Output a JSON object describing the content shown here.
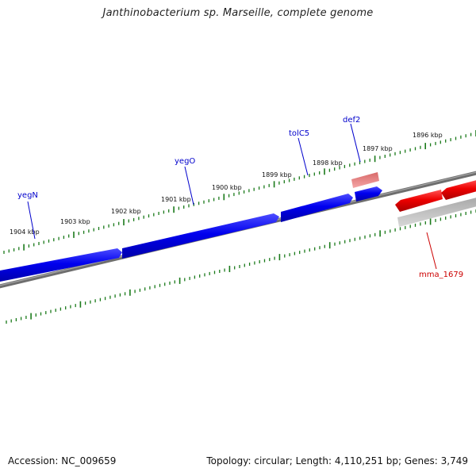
{
  "title": "Janthinobacterium sp. Marseille, complete genome",
  "footer": {
    "accession": "Accession: NC_009659",
    "summary": "Topology: circular; Length: 4,110,251 bp; Genes: 3,749"
  },
  "colors": {
    "forward_gene": "#0000ee",
    "reverse_gene": "#ee0000",
    "backbone": "#777777",
    "ticks": "#1a7a1a",
    "forward_label": "#0000cc",
    "reverse_label": "#cc0000"
  },
  "ruler_labels": [
    "1896 kbp",
    "1897 kbp",
    "1898 kbp",
    "1899 kbp",
    "1900 kbp",
    "1901 kbp",
    "1902 kbp",
    "1903 kbp",
    "1904 kbp"
  ],
  "gene_labels": {
    "forward": [
      "yegN",
      "yegO",
      "tolC5",
      "def2"
    ],
    "reverse": [
      "mma_1679"
    ]
  }
}
